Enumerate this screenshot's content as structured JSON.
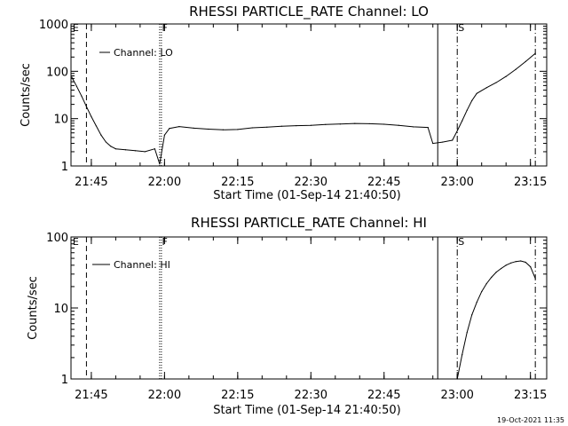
{
  "chart_data": [
    {
      "type": "line",
      "title": "RHESSI PARTICLE_RATE Channel: LO",
      "xlabel": "Start Time (01-Sep-14 21:40:50)",
      "ylabel": "Counts/sec",
      "yscale": "log",
      "ylim": [
        1,
        1000
      ],
      "xlim_minutes_after_start": [
        0,
        97.5
      ],
      "x_tick_labels": [
        "21:45",
        "22:00",
        "22:15",
        "22:30",
        "22:45",
        "23:00",
        "23:15"
      ],
      "y_tick_labels": [
        "1",
        "10",
        "100",
        "1000"
      ],
      "legend_entry": "Channel: LO",
      "flag_labels": [
        "E",
        "F",
        "S"
      ],
      "series": [
        {
          "name": "Channel: LO",
          "points": [
            [
              "21:41",
              75
            ],
            [
              "21:42",
              48
            ],
            [
              "21:43",
              30
            ],
            [
              "21:44",
              18
            ],
            [
              "21:45",
              11
            ],
            [
              "21:46",
              7
            ],
            [
              "21:47",
              4.5
            ],
            [
              "21:48",
              3.2
            ],
            [
              "21:49",
              2.6
            ],
            [
              "21:50",
              2.3
            ],
            [
              "21:52",
              2.2
            ],
            [
              "21:54",
              2.1
            ],
            [
              "21:56",
              2.0
            ],
            [
              "21:58",
              2.3
            ],
            [
              "21:59",
              1.1
            ],
            [
              "22:00",
              4.5
            ],
            [
              "22:01",
              6.2
            ],
            [
              "22:03",
              6.8
            ],
            [
              "22:06",
              6.3
            ],
            [
              "22:09",
              6.0
            ],
            [
              "22:12",
              5.8
            ],
            [
              "22:15",
              5.9
            ],
            [
              "22:18",
              6.4
            ],
            [
              "22:21",
              6.6
            ],
            [
              "22:24",
              6.9
            ],
            [
              "22:27",
              7.1
            ],
            [
              "22:30",
              7.2
            ],
            [
              "22:33",
              7.5
            ],
            [
              "22:36",
              7.7
            ],
            [
              "22:39",
              7.9
            ],
            [
              "22:42",
              7.8
            ],
            [
              "22:45",
              7.6
            ],
            [
              "22:48",
              7.2
            ],
            [
              "22:51",
              6.7
            ],
            [
              "22:54",
              6.5
            ],
            [
              "22:55",
              3.0
            ],
            [
              "22:57",
              3.2
            ],
            [
              "22:59",
              3.5
            ],
            [
              "23:00",
              5.5
            ],
            [
              "23:01",
              9
            ],
            [
              "23:02",
              15
            ],
            [
              "23:03",
              24
            ],
            [
              "23:04",
              34
            ],
            [
              "23:06",
              45
            ],
            [
              "23:08",
              58
            ],
            [
              "23:10",
              78
            ],
            [
              "23:12",
              110
            ],
            [
              "23:14",
              160
            ],
            [
              "23:16",
              240
            ]
          ]
        }
      ],
      "markers": [
        {
          "time": "21:44",
          "style": "dashed"
        },
        {
          "time": "21:59",
          "style": "dotted"
        },
        {
          "time": "22:56",
          "style": "solid"
        },
        {
          "time": "23:00",
          "style": "dashdot"
        },
        {
          "time": "23:16",
          "style": "dashdot"
        }
      ]
    },
    {
      "type": "line",
      "title": "RHESSI PARTICLE_RATE Channel: HI",
      "xlabel": "Start Time (01-Sep-14 21:40:50)",
      "ylabel": "Counts/sec",
      "yscale": "log",
      "ylim": [
        1,
        100
      ],
      "xlim_minutes_after_start": [
        0,
        97.5
      ],
      "x_tick_labels": [
        "21:45",
        "22:00",
        "22:15",
        "22:30",
        "22:45",
        "23:00",
        "23:15"
      ],
      "y_tick_labels": [
        "1",
        "10",
        "100"
      ],
      "legend_entry": "Channel: HI",
      "flag_labels": [
        "E",
        "F",
        "S"
      ],
      "series": [
        {
          "name": "Channel: HI",
          "points": [
            [
              "23:00",
              1.0
            ],
            [
              "23:01",
              2.2
            ],
            [
              "23:02",
              4.5
            ],
            [
              "23:03",
              8.0
            ],
            [
              "23:04",
              12
            ],
            [
              "23:05",
              17
            ],
            [
              "23:06",
              22
            ],
            [
              "23:07",
              27
            ],
            [
              "23:08",
              32
            ],
            [
              "23:09",
              36
            ],
            [
              "23:10",
              40
            ],
            [
              "23:11",
              43
            ],
            [
              "23:12",
              45
            ],
            [
              "23:13",
              46
            ],
            [
              "23:14",
              44
            ],
            [
              "23:15",
              38
            ],
            [
              "23:16",
              26
            ]
          ]
        }
      ],
      "markers": [
        {
          "time": "21:44",
          "style": "dashed"
        },
        {
          "time": "21:59",
          "style": "dotted"
        },
        {
          "time": "22:56",
          "style": "solid"
        },
        {
          "time": "23:00",
          "style": "dashdot"
        },
        {
          "time": "23:16",
          "style": "dashdot"
        }
      ]
    }
  ],
  "timestamp": "19-Oct-2021 11:35"
}
